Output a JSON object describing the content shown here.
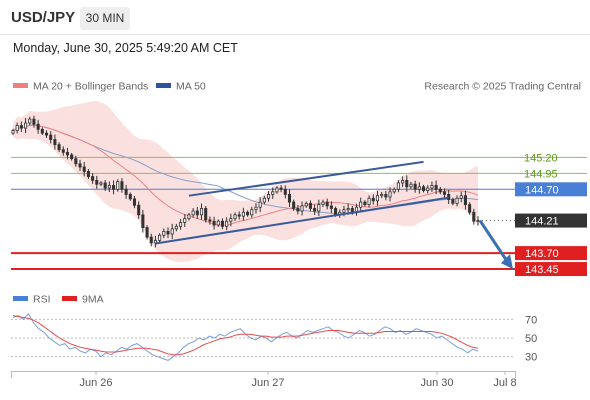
{
  "header": {
    "pair": "USD/JPY",
    "timeframe": "30 MIN",
    "datetime": "Monday, June 30, 2025 5:49:20 AM CET"
  },
  "legend": {
    "ma20": "MA 20 + Bollinger Bands",
    "ma50": "MA 50",
    "credit": "Research © 2025 Trading Central",
    "rsi": "RSI",
    "rsi_ma": "9MA"
  },
  "colors": {
    "ma20": "#f08080",
    "ma50": "#2f5597",
    "band_fill": "#fbe0e0",
    "candle": "#333333",
    "channel": "#3a5a9a",
    "support": "#e02020",
    "resistance_green": "#8bc34a",
    "pivot_blue": "#4a7fd6",
    "current": "#333333",
    "arrow": "#3a6fb5",
    "rsi_line": "#7a9fdb",
    "rsi_ma_line": "#e05050"
  },
  "chart_data": [
    {
      "type": "candlestick",
      "title": "USD/JPY",
      "x_labels": [
        "Jun 26",
        "Jun 27",
        "Jun 30",
        "Jul 8"
      ],
      "ylim": [
        143.2,
        146.1
      ],
      "current_price": 144.21,
      "levels": [
        {
          "value": 145.2,
          "label": "145.20",
          "kind": "resistance"
        },
        {
          "value": 144.95,
          "label": "144.95",
          "kind": "resistance"
        },
        {
          "value": 144.7,
          "label": "144.70",
          "kind": "pivot"
        },
        {
          "value": 144.21,
          "label": "144.21",
          "kind": "current"
        },
        {
          "value": 143.7,
          "label": "143.70",
          "kind": "support"
        },
        {
          "value": 143.45,
          "label": "143.45",
          "kind": "support"
        }
      ],
      "close": [
        145.62,
        145.7,
        145.66,
        145.74,
        145.8,
        145.72,
        145.64,
        145.58,
        145.55,
        145.48,
        145.4,
        145.32,
        145.28,
        145.24,
        145.18,
        145.1,
        145.05,
        144.98,
        144.9,
        144.84,
        144.78,
        144.8,
        144.72,
        144.76,
        144.7,
        144.82,
        144.7,
        144.62,
        144.55,
        144.45,
        144.3,
        144.1,
        143.95,
        143.86,
        143.9,
        143.98,
        144.04,
        144.0,
        144.08,
        144.12,
        144.18,
        144.24,
        144.3,
        144.36,
        144.3,
        144.4,
        144.22,
        144.2,
        144.14,
        144.2,
        144.12,
        144.2,
        144.24,
        144.3,
        144.28,
        144.34,
        144.3,
        144.38,
        144.42,
        144.5,
        144.56,
        144.62,
        144.66,
        144.72,
        144.7,
        144.62,
        144.5,
        144.4,
        144.36,
        144.44,
        144.48,
        144.4,
        144.36,
        144.46,
        144.5,
        144.44,
        144.4,
        144.3,
        144.34,
        144.38,
        144.4,
        144.34,
        144.42,
        144.5,
        144.46,
        144.56,
        144.52,
        144.6,
        144.62,
        144.58,
        144.66,
        144.7,
        144.8,
        144.84,
        144.74,
        144.78,
        144.7,
        144.74,
        144.68,
        144.72,
        144.76,
        144.7,
        144.66,
        144.62,
        144.54,
        144.48,
        144.56,
        144.6,
        144.46,
        144.34,
        144.2,
        144.21
      ],
      "ma20_end": 144.52,
      "ma50_end": 144.55
    },
    {
      "type": "line",
      "title": "RSI",
      "ylim": [
        20,
        80
      ],
      "y_ticks": [
        70,
        50,
        30
      ],
      "series": [
        {
          "name": "RSI",
          "values": [
            72,
            74,
            70,
            76,
            66,
            60,
            56,
            50,
            46,
            42,
            44,
            38,
            40,
            36,
            34,
            38,
            36,
            30,
            34,
            32,
            36,
            40,
            38,
            42,
            44,
            40,
            36,
            32,
            30,
            28,
            26,
            30,
            34,
            40,
            44,
            46,
            50,
            48,
            52,
            50,
            54,
            52,
            56,
            58,
            60,
            54,
            50,
            48,
            52,
            50,
            46,
            50,
            54,
            56,
            52,
            50,
            54,
            58,
            56,
            58,
            60,
            62,
            58,
            56,
            52,
            50,
            54,
            58,
            56,
            52,
            54,
            58,
            62,
            60,
            56,
            58,
            54,
            56,
            60,
            58,
            56,
            54,
            50,
            52,
            48,
            44,
            40,
            38,
            34,
            38,
            36
          ]
        },
        {
          "name": "9MA",
          "values": [
            74,
            73,
            72,
            71,
            69,
            66,
            62,
            58,
            54,
            50,
            47,
            44,
            42,
            40,
            39,
            38,
            37,
            36,
            35,
            35,
            35,
            36,
            37,
            38,
            39,
            39,
            39,
            38,
            37,
            35,
            33,
            32,
            32,
            33,
            35,
            37,
            40,
            43,
            45,
            47,
            49,
            50,
            51,
            53,
            54,
            54,
            54,
            53,
            52,
            52,
            51,
            51,
            51,
            52,
            52,
            52,
            53,
            54,
            55,
            56,
            57,
            58,
            58,
            58,
            57,
            56,
            55,
            55,
            55,
            55,
            55,
            56,
            57,
            57,
            57,
            57,
            57,
            57,
            57,
            57,
            57,
            57,
            56,
            55,
            53,
            51,
            48,
            45,
            42,
            40,
            39
          ]
        }
      ]
    }
  ]
}
